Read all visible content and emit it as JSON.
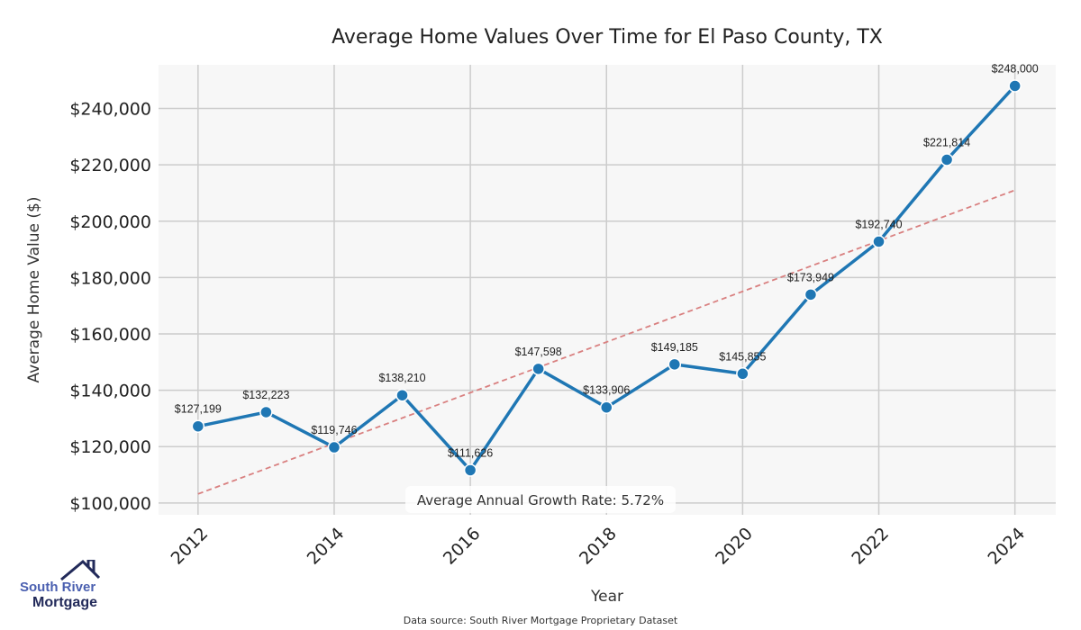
{
  "chart_data": {
    "type": "line",
    "title": "Average Home Values Over Time for El Paso County, TX",
    "xlabel": "Year",
    "ylabel": "Average Home Value ($)",
    "x": [
      2012,
      2013,
      2014,
      2015,
      2016,
      2017,
      2018,
      2019,
      2020,
      2021,
      2022,
      2023,
      2024
    ],
    "values": [
      127199,
      132223,
      119746,
      138210,
      111626,
      147598,
      133906,
      149185,
      145855,
      173949,
      192740,
      221814,
      248000
    ],
    "data_labels": [
      "$127,199",
      "$132,223",
      "$119,746",
      "$138,210",
      "$111,626",
      "$147,598",
      "$133,906",
      "$149,185",
      "$145,855",
      "$173,949",
      "$192,740",
      "$221,814",
      "$248,000"
    ],
    "xticks": [
      2012,
      2014,
      2016,
      2018,
      2020,
      2022,
      2024
    ],
    "xtick_labels": [
      "2012",
      "2014",
      "2016",
      "2018",
      "2020",
      "2022",
      "2024"
    ],
    "yticks": [
      100000,
      120000,
      140000,
      160000,
      180000,
      200000,
      220000,
      240000
    ],
    "ytick_labels": [
      "$100,000",
      "$120,000",
      "$140,000",
      "$160,000",
      "$180,000",
      "$200,000",
      "$220,000",
      "$240,000"
    ],
    "xlim": [
      2011.42,
      2024.6
    ],
    "ylim": [
      95800,
      255500
    ],
    "grid": true,
    "trend_line": {
      "x": [
        2012,
        2024
      ],
      "y": [
        103200,
        211000
      ]
    },
    "annotation": "Average Annual Growth Rate: 5.72%",
    "colors": {
      "line": "#1f77b4",
      "trend": "#d98080",
      "grid": "#cccccc",
      "background": "#f7f7f7"
    }
  },
  "source": "Data source: South River Mortgage Proprietary Dataset",
  "logo": {
    "line1": "South River",
    "line2": "Mortgage"
  }
}
